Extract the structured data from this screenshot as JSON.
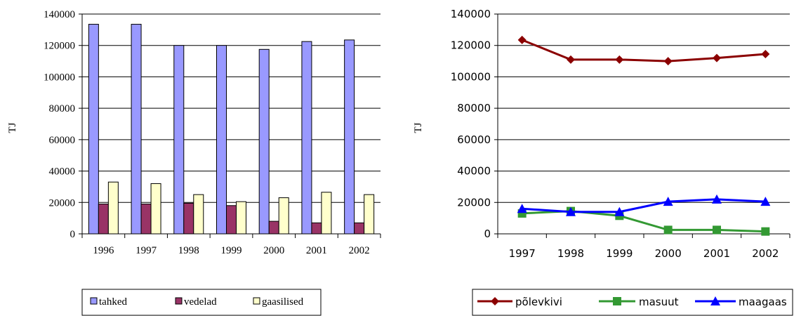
{
  "chart_data": [
    {
      "type": "bar",
      "ylabel": "TJ",
      "ylim": [
        0,
        140000
      ],
      "yticks": [
        "0",
        "20000",
        "40000",
        "60000",
        "80000",
        "100000",
        "120000",
        "140000"
      ],
      "categories": [
        "1996",
        "1997",
        "1998",
        "1999",
        "2000",
        "2001",
        "2002"
      ],
      "grid": true,
      "legend_position": "bottom",
      "series": [
        {
          "name": "tahked",
          "color": "#9999ff",
          "values": [
            133500,
            133500,
            120000,
            120000,
            117500,
            122500,
            123500
          ]
        },
        {
          "name": "vedelad",
          "color": "#993366",
          "values": [
            19000,
            19000,
            19500,
            18000,
            8000,
            7000,
            7000
          ]
        },
        {
          "name": "gaasilised",
          "color": "#ffffcc",
          "values": [
            33000,
            32000,
            25000,
            20500,
            23000,
            26500,
            25000
          ]
        }
      ]
    },
    {
      "type": "line",
      "ylabel": "TJ",
      "ylim": [
        0,
        140000
      ],
      "yticks": [
        "0",
        "20000",
        "40000",
        "60000",
        "80000",
        "100000",
        "120000",
        "140000"
      ],
      "categories": [
        "1997",
        "1998",
        "1999",
        "2000",
        "2001",
        "2002"
      ],
      "grid": true,
      "legend_position": "bottom",
      "series": [
        {
          "name": "põlevkivi",
          "color": "#8b0000",
          "marker": "diamond",
          "values": [
            123500,
            111000,
            111000,
            110000,
            112000,
            114500
          ]
        },
        {
          "name": "masuut",
          "color": "#339933",
          "marker": "square",
          "values": [
            13000,
            14500,
            11500,
            2500,
            2500,
            1500
          ]
        },
        {
          "name": "maagaas",
          "color": "#0000ff",
          "marker": "triangle",
          "values": [
            16000,
            14000,
            14000,
            20500,
            22000,
            20500
          ]
        }
      ]
    }
  ]
}
